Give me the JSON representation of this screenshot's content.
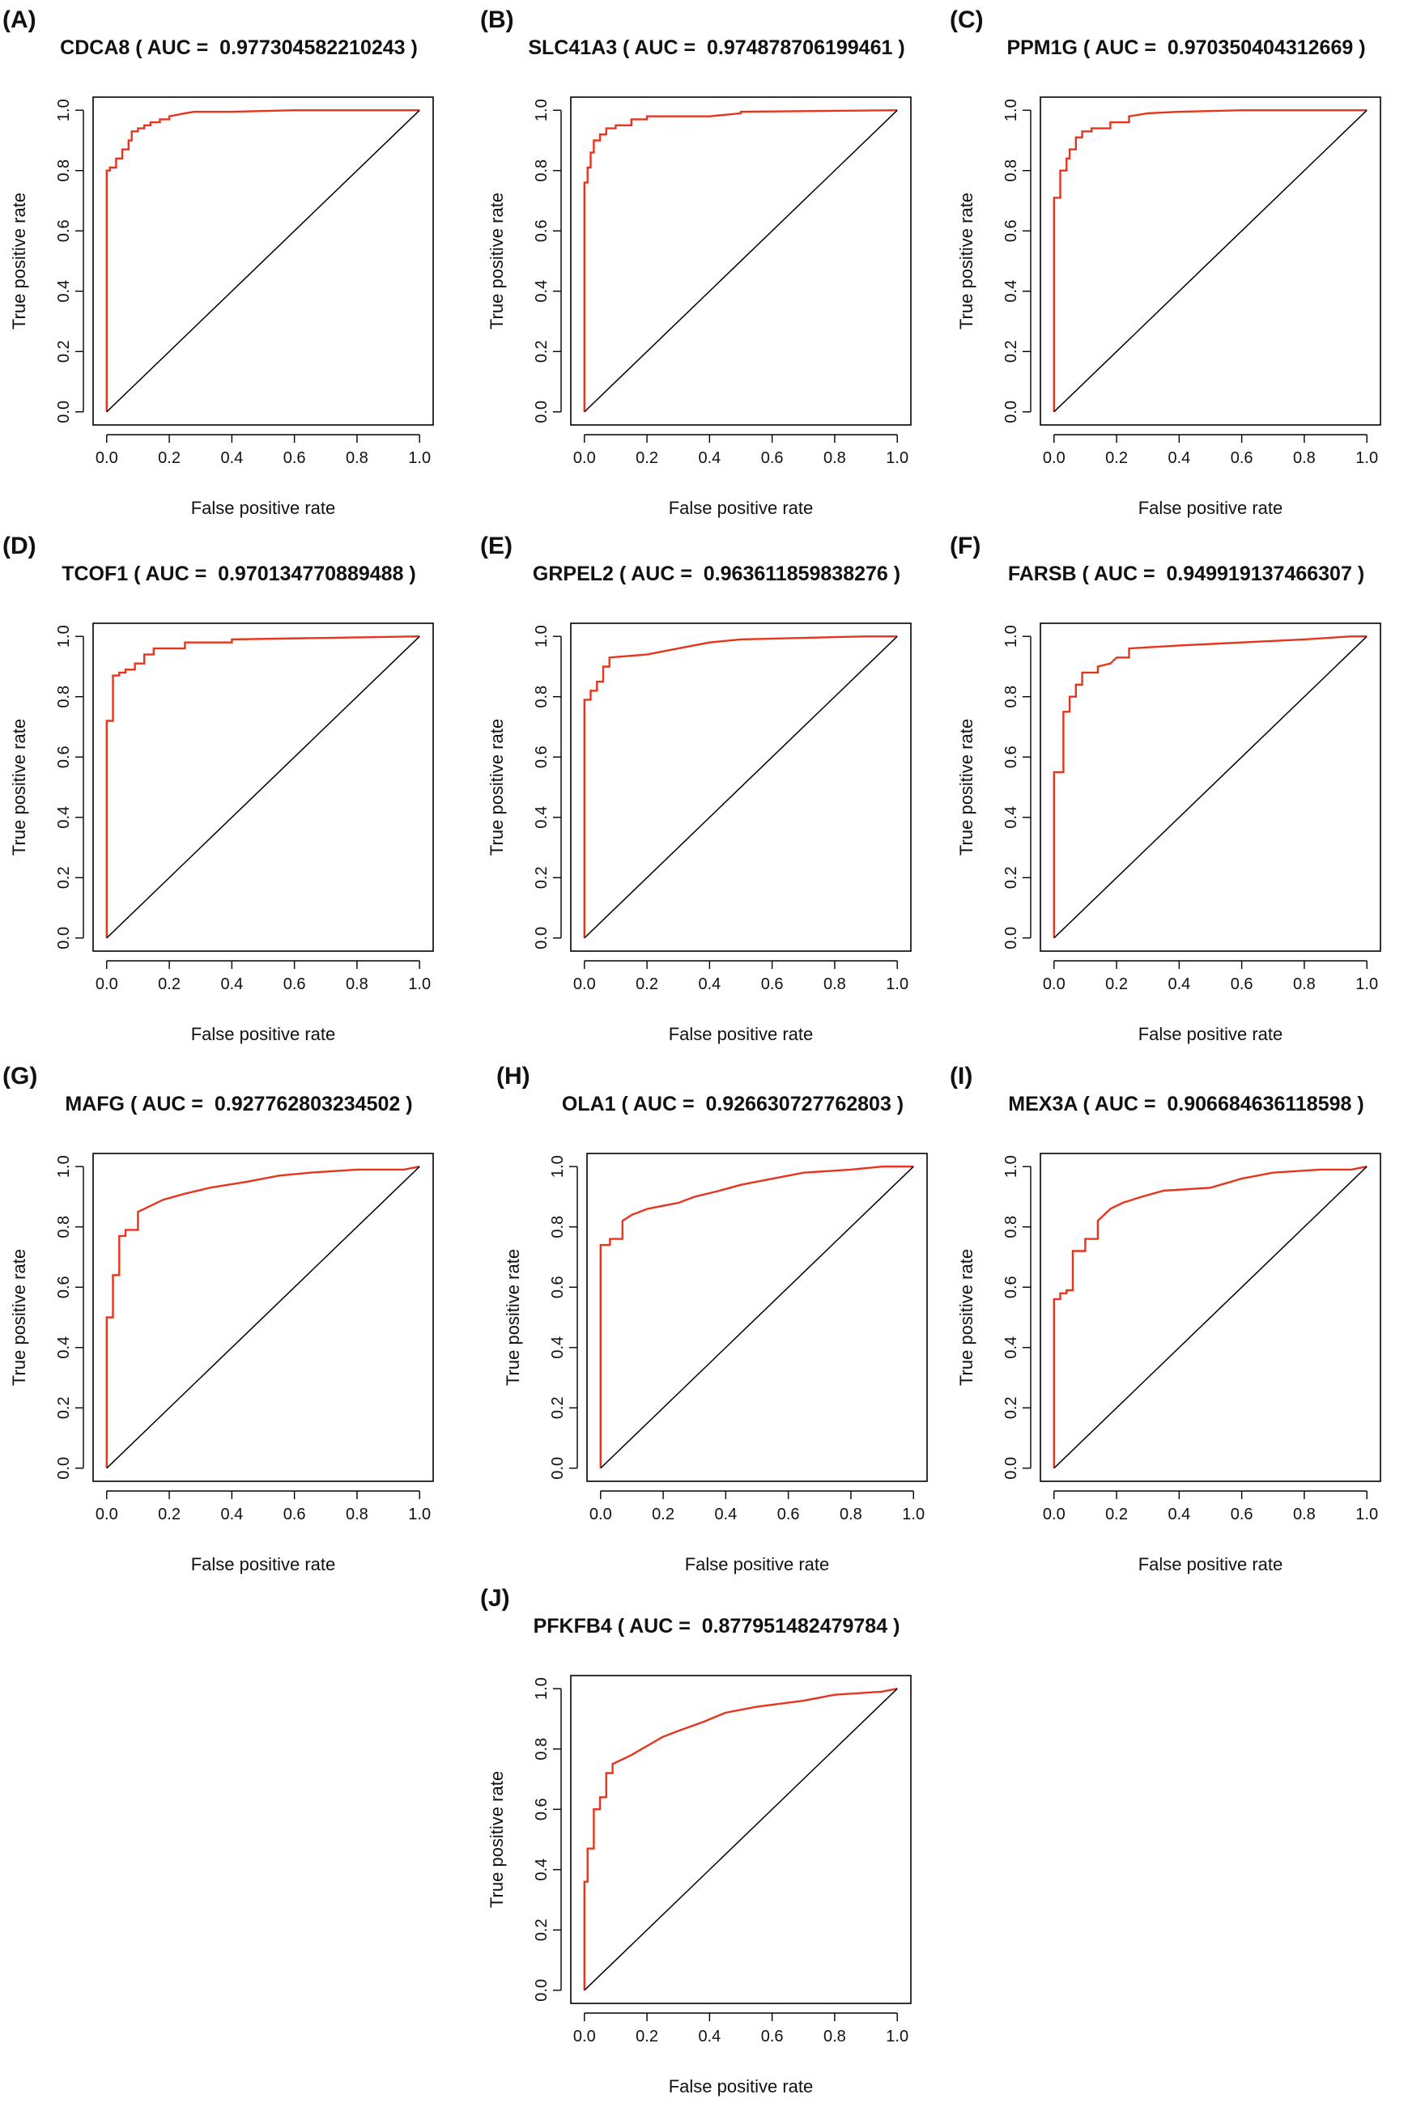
{
  "figure": {
    "background": "#ffffff",
    "roc_color": "#e8341c",
    "reference_color": "#000000"
  },
  "chart_data": [
    {
      "panel": "(A)",
      "title": "CDCA8 ( AUC =  0.977304582210243 )",
      "type": "line",
      "xlabel": "False positive rate",
      "ylabel": "True positive rate",
      "xlim": [
        0,
        1
      ],
      "ylim": [
        0,
        1
      ],
      "xticks": [
        "0.0",
        "0.2",
        "0.4",
        "0.6",
        "0.8",
        "1.0"
      ],
      "yticks": [
        "0.0",
        "0.2",
        "0.4",
        "0.6",
        "0.8",
        "1.0"
      ],
      "series": [
        {
          "name": "ROC",
          "x": [
            0,
            0,
            0.01,
            0.01,
            0.03,
            0.03,
            0.05,
            0.05,
            0.07,
            0.07,
            0.08,
            0.08,
            0.1,
            0.1,
            0.12,
            0.12,
            0.14,
            0.14,
            0.17,
            0.17,
            0.2,
            0.2,
            0.25,
            0.28,
            0.4,
            0.6,
            1.0
          ],
          "y": [
            0,
            0.8,
            0.8,
            0.81,
            0.81,
            0.84,
            0.84,
            0.87,
            0.87,
            0.9,
            0.9,
            0.93,
            0.93,
            0.94,
            0.94,
            0.95,
            0.95,
            0.96,
            0.96,
            0.97,
            0.97,
            0.98,
            0.99,
            0.995,
            0.995,
            1.0,
            1.0
          ]
        },
        {
          "name": "Reference",
          "x": [
            0,
            1
          ],
          "y": [
            0,
            1
          ]
        }
      ]
    },
    {
      "panel": "(B)",
      "title": "SLC41A3 ( AUC =  0.974878706199461 )",
      "type": "line",
      "xlabel": "False positive rate",
      "ylabel": "True positive rate",
      "xlim": [
        0,
        1
      ],
      "ylim": [
        0,
        1
      ],
      "xticks": [
        "0.0",
        "0.2",
        "0.4",
        "0.6",
        "0.8",
        "1.0"
      ],
      "yticks": [
        "0.0",
        "0.2",
        "0.4",
        "0.6",
        "0.8",
        "1.0"
      ],
      "series": [
        {
          "name": "ROC",
          "x": [
            0,
            0,
            0.01,
            0.01,
            0.02,
            0.02,
            0.03,
            0.03,
            0.05,
            0.05,
            0.07,
            0.07,
            0.1,
            0.1,
            0.15,
            0.15,
            0.2,
            0.2,
            0.4,
            0.5,
            0.5,
            1.0
          ],
          "y": [
            0,
            0.76,
            0.76,
            0.81,
            0.81,
            0.86,
            0.86,
            0.9,
            0.9,
            0.92,
            0.92,
            0.94,
            0.94,
            0.95,
            0.95,
            0.97,
            0.97,
            0.98,
            0.98,
            0.99,
            0.995,
            1.0
          ]
        },
        {
          "name": "Reference",
          "x": [
            0,
            1
          ],
          "y": [
            0,
            1
          ]
        }
      ]
    },
    {
      "panel": "(C)",
      "title": "PPM1G ( AUC =  0.970350404312669 )",
      "type": "line",
      "xlabel": "False positive rate",
      "ylabel": "True positive rate",
      "xlim": [
        0,
        1
      ],
      "ylim": [
        0,
        1
      ],
      "xticks": [
        "0.0",
        "0.2",
        "0.4",
        "0.6",
        "0.8",
        "1.0"
      ],
      "yticks": [
        "0.0",
        "0.2",
        "0.4",
        "0.6",
        "0.8",
        "1.0"
      ],
      "series": [
        {
          "name": "ROC",
          "x": [
            0,
            0,
            0.02,
            0.02,
            0.04,
            0.04,
            0.05,
            0.05,
            0.07,
            0.07,
            0.09,
            0.09,
            0.12,
            0.12,
            0.18,
            0.18,
            0.24,
            0.24,
            0.3,
            0.4,
            0.6,
            1.0
          ],
          "y": [
            0,
            0.71,
            0.71,
            0.8,
            0.8,
            0.84,
            0.84,
            0.87,
            0.87,
            0.91,
            0.91,
            0.93,
            0.93,
            0.94,
            0.94,
            0.96,
            0.96,
            0.98,
            0.99,
            0.995,
            1.0,
            1.0
          ]
        },
        {
          "name": "Reference",
          "x": [
            0,
            1
          ],
          "y": [
            0,
            1
          ]
        }
      ]
    },
    {
      "panel": "(D)",
      "title": "TCOF1 ( AUC =  0.970134770889488 )",
      "type": "line",
      "xlabel": "False positive rate",
      "ylabel": "True positive rate",
      "xlim": [
        0,
        1
      ],
      "ylim": [
        0,
        1
      ],
      "xticks": [
        "0.0",
        "0.2",
        "0.4",
        "0.6",
        "0.8",
        "1.0"
      ],
      "yticks": [
        "0.0",
        "0.2",
        "0.4",
        "0.6",
        "0.8",
        "1.0"
      ],
      "series": [
        {
          "name": "ROC",
          "x": [
            0,
            0,
            0.02,
            0.02,
            0.04,
            0.04,
            0.06,
            0.06,
            0.09,
            0.09,
            0.12,
            0.12,
            0.15,
            0.15,
            0.25,
            0.25,
            0.4,
            0.4,
            1.0
          ],
          "y": [
            0,
            0.72,
            0.72,
            0.87,
            0.87,
            0.88,
            0.88,
            0.89,
            0.89,
            0.91,
            0.91,
            0.94,
            0.94,
            0.96,
            0.96,
            0.98,
            0.98,
            0.99,
            1.0
          ]
        },
        {
          "name": "Reference",
          "x": [
            0,
            1
          ],
          "y": [
            0,
            1
          ]
        }
      ]
    },
    {
      "panel": "(E)",
      "title": "GRPEL2 ( AUC =  0.963611859838276 )",
      "type": "line",
      "xlabel": "False positive rate",
      "ylabel": "True positive rate",
      "xlim": [
        0,
        1
      ],
      "ylim": [
        0,
        1
      ],
      "xticks": [
        "0.0",
        "0.2",
        "0.4",
        "0.6",
        "0.8",
        "1.0"
      ],
      "yticks": [
        "0.0",
        "0.2",
        "0.4",
        "0.6",
        "0.8",
        "1.0"
      ],
      "series": [
        {
          "name": "ROC",
          "x": [
            0,
            0,
            0.02,
            0.02,
            0.04,
            0.04,
            0.06,
            0.06,
            0.08,
            0.08,
            0.2,
            0.3,
            0.4,
            0.5,
            0.9,
            1.0
          ],
          "y": [
            0,
            0.79,
            0.79,
            0.82,
            0.82,
            0.85,
            0.85,
            0.9,
            0.9,
            0.93,
            0.94,
            0.96,
            0.98,
            0.99,
            1.0,
            1.0
          ]
        },
        {
          "name": "Reference",
          "x": [
            0,
            1
          ],
          "y": [
            0,
            1
          ]
        }
      ]
    },
    {
      "panel": "(F)",
      "title": "FARSB ( AUC =  0.949919137466307 )",
      "type": "line",
      "xlabel": "False positive rate",
      "ylabel": "True positive rate",
      "xlim": [
        0,
        1
      ],
      "ylim": [
        0,
        1
      ],
      "xticks": [
        "0.0",
        "0.2",
        "0.4",
        "0.6",
        "0.8",
        "1.0"
      ],
      "yticks": [
        "0.0",
        "0.2",
        "0.4",
        "0.6",
        "0.8",
        "1.0"
      ],
      "series": [
        {
          "name": "ROC",
          "x": [
            0,
            0,
            0.03,
            0.03,
            0.05,
            0.05,
            0.07,
            0.07,
            0.09,
            0.09,
            0.14,
            0.14,
            0.18,
            0.2,
            0.24,
            0.24,
            0.4,
            0.6,
            0.8,
            0.95,
            1.0
          ],
          "y": [
            0,
            0.55,
            0.55,
            0.75,
            0.75,
            0.8,
            0.8,
            0.84,
            0.84,
            0.88,
            0.88,
            0.9,
            0.91,
            0.93,
            0.93,
            0.96,
            0.97,
            0.98,
            0.99,
            1.0,
            1.0
          ]
        },
        {
          "name": "Reference",
          "x": [
            0,
            1
          ],
          "y": [
            0,
            1
          ]
        }
      ]
    },
    {
      "panel": "(G)",
      "title": "MAFG ( AUC =  0.927762803234502 )",
      "type": "line",
      "xlabel": "False positive rate",
      "ylabel": "True positive rate",
      "xlim": [
        0,
        1
      ],
      "ylim": [
        0,
        1
      ],
      "xticks": [
        "0.0",
        "0.2",
        "0.4",
        "0.6",
        "0.8",
        "1.0"
      ],
      "yticks": [
        "0.0",
        "0.2",
        "0.4",
        "0.6",
        "0.8",
        "1.0"
      ],
      "series": [
        {
          "name": "ROC",
          "x": [
            0,
            0,
            0.02,
            0.02,
            0.04,
            0.04,
            0.06,
            0.06,
            0.1,
            0.1,
            0.12,
            0.18,
            0.25,
            0.33,
            0.45,
            0.55,
            0.65,
            0.8,
            0.95,
            1.0
          ],
          "y": [
            0,
            0.5,
            0.5,
            0.64,
            0.64,
            0.77,
            0.77,
            0.79,
            0.79,
            0.85,
            0.86,
            0.89,
            0.91,
            0.93,
            0.95,
            0.97,
            0.98,
            0.99,
            0.99,
            1.0
          ]
        },
        {
          "name": "Reference",
          "x": [
            0,
            1
          ],
          "y": [
            0,
            1
          ]
        }
      ]
    },
    {
      "panel": "(H)",
      "title": "OLA1 ( AUC =  0.926630727762803 )",
      "type": "line",
      "xlabel": "False positive rate",
      "ylabel": "True positive rate",
      "xlim": [
        0,
        1
      ],
      "ylim": [
        0,
        1
      ],
      "xticks": [
        "0.0",
        "0.2",
        "0.4",
        "0.6",
        "0.8",
        "1.0"
      ],
      "yticks": [
        "0.0",
        "0.2",
        "0.4",
        "0.6",
        "0.8",
        "1.0"
      ],
      "series": [
        {
          "name": "ROC",
          "x": [
            0,
            0,
            0.03,
            0.03,
            0.07,
            0.07,
            0.1,
            0.15,
            0.2,
            0.25,
            0.3,
            0.38,
            0.45,
            0.55,
            0.65,
            0.8,
            0.9,
            1.0
          ],
          "y": [
            0,
            0.74,
            0.74,
            0.76,
            0.76,
            0.82,
            0.84,
            0.86,
            0.87,
            0.88,
            0.9,
            0.92,
            0.94,
            0.96,
            0.98,
            0.99,
            1.0,
            1.0
          ]
        },
        {
          "name": "Reference",
          "x": [
            0,
            1
          ],
          "y": [
            0,
            1
          ]
        }
      ]
    },
    {
      "panel": "(I)",
      "title": "MEX3A ( AUC =  0.906684636118598 )",
      "type": "line",
      "xlabel": "False positive rate",
      "ylabel": "True positive rate",
      "xlim": [
        0,
        1
      ],
      "ylim": [
        0,
        1
      ],
      "xticks": [
        "0.0",
        "0.2",
        "0.4",
        "0.6",
        "0.8",
        "1.0"
      ],
      "yticks": [
        "0.0",
        "0.2",
        "0.4",
        "0.6",
        "0.8",
        "1.0"
      ],
      "series": [
        {
          "name": "ROC",
          "x": [
            0,
            0,
            0.02,
            0.02,
            0.04,
            0.04,
            0.06,
            0.06,
            0.1,
            0.1,
            0.14,
            0.14,
            0.18,
            0.22,
            0.28,
            0.35,
            0.5,
            0.6,
            0.7,
            0.85,
            0.95,
            1.0
          ],
          "y": [
            0,
            0.56,
            0.56,
            0.58,
            0.58,
            0.59,
            0.59,
            0.72,
            0.72,
            0.76,
            0.76,
            0.82,
            0.86,
            0.88,
            0.9,
            0.92,
            0.93,
            0.96,
            0.98,
            0.99,
            0.99,
            1.0
          ]
        },
        {
          "name": "Reference",
          "x": [
            0,
            1
          ],
          "y": [
            0,
            1
          ]
        }
      ]
    },
    {
      "panel": "(J)",
      "title": "PFKFB4 ( AUC =  0.877951482479784 )",
      "type": "line",
      "xlabel": "False positive rate",
      "ylabel": "True positive rate",
      "xlim": [
        0,
        1
      ],
      "ylim": [
        0,
        1
      ],
      "xticks": [
        "0.0",
        "0.2",
        "0.4",
        "0.6",
        "0.8",
        "1.0"
      ],
      "yticks": [
        "0.0",
        "0.2",
        "0.4",
        "0.6",
        "0.8",
        "1.0"
      ],
      "series": [
        {
          "name": "ROC",
          "x": [
            0,
            0,
            0.01,
            0.01,
            0.03,
            0.03,
            0.05,
            0.05,
            0.07,
            0.07,
            0.09,
            0.09,
            0.15,
            0.2,
            0.25,
            0.3,
            0.38,
            0.45,
            0.55,
            0.7,
            0.8,
            0.95,
            1.0
          ],
          "y": [
            0,
            0.36,
            0.36,
            0.47,
            0.47,
            0.6,
            0.6,
            0.64,
            0.64,
            0.72,
            0.72,
            0.75,
            0.78,
            0.81,
            0.84,
            0.86,
            0.89,
            0.92,
            0.94,
            0.96,
            0.98,
            0.99,
            1.0
          ]
        },
        {
          "name": "Reference",
          "x": [
            0,
            1
          ],
          "y": [
            0,
            1
          ]
        }
      ]
    }
  ]
}
